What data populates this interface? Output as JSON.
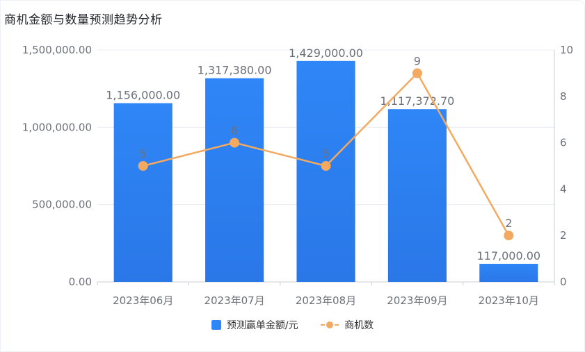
{
  "page_title": "商机金额与数量预测趋势分析",
  "colors": {
    "bar": "#2f86f6",
    "line": "#f4a961",
    "axis_text": "#6e7079",
    "grid": "#e8ebf0"
  },
  "chart_data": {
    "type": "bar",
    "title": "商机金额与数量预测趋势分析",
    "categories": [
      "2023年06月",
      "2023年07月",
      "2023年08月",
      "2023年09月",
      "2023年10月"
    ],
    "series": [
      {
        "name": "预测赢单金额/元",
        "type": "bar",
        "axis": "left",
        "values": [
          1156000.0,
          1317380.0,
          1429000.0,
          1117372.7,
          117000.0
        ],
        "labels": [
          "1,156,000.00",
          "1,317,380.00",
          "1,429,000.00",
          "1,117,372.70",
          "117,000.00"
        ]
      },
      {
        "name": "商机数",
        "type": "line",
        "axis": "right",
        "values": [
          5,
          6,
          5,
          9,
          2
        ],
        "labels": [
          "5",
          "6",
          "5",
          "9",
          "2"
        ]
      }
    ],
    "y_left": {
      "range": [
        0,
        1500000
      ],
      "ticks": [
        "0.00",
        "500,000.00",
        "1,000,000.00",
        "1,500,000.00"
      ],
      "tick_values": [
        0,
        500000,
        1000000,
        1500000
      ]
    },
    "y_right": {
      "range": [
        0,
        10
      ],
      "ticks": [
        "0",
        "2",
        "4",
        "6",
        "8",
        "10"
      ],
      "tick_values": [
        0,
        2,
        4,
        6,
        8,
        10
      ]
    },
    "legend": {
      "placement": "bottom-center",
      "items": [
        "预测赢单金额/元",
        "商机数"
      ]
    },
    "grid": true
  }
}
